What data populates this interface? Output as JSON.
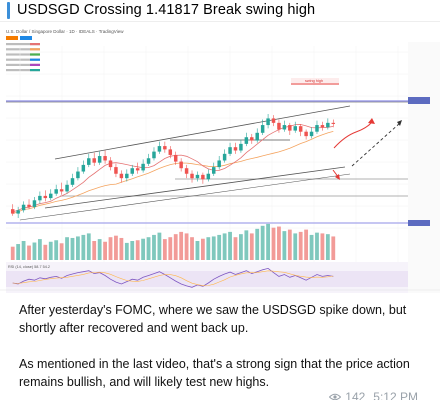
{
  "post": {
    "title": "USDSGD Crossing 1.41817 Break swing high",
    "accent_color": "#3b8fd9",
    "paragraphs": [
      "After yesterday's FOMC, where we saw the USDSGD spike down, but shortly after recovered and went back up.",
      "As mentioned in the last video, that's a strong sign that the price action remains bullish, and will likely test new highs."
    ],
    "views": "142",
    "time": "5:12 PM"
  },
  "chart_image": {
    "instrument_header": "U.S. Dollar / Singapore Dollar · 1D · IDEALS · TradingView",
    "indicator_label": "RSI (14, close) 58.7 54.2",
    "swing_high_label": "swing high",
    "bull_color": "#26a69a",
    "bear_color": "#ef5350",
    "candles": [
      [
        1.348,
        1.344,
        1.3525,
        1.342
      ],
      [
        1.344,
        1.347,
        1.35,
        1.34
      ],
      [
        1.347,
        1.352,
        1.355,
        1.345
      ],
      [
        1.352,
        1.35,
        1.357,
        1.348
      ],
      [
        1.35,
        1.356,
        1.359,
        1.348
      ],
      [
        1.356,
        1.36,
        1.364,
        1.353
      ],
      [
        1.36,
        1.358,
        1.365,
        1.355
      ],
      [
        1.358,
        1.362,
        1.366,
        1.356
      ],
      [
        1.362,
        1.366,
        1.37,
        1.36
      ],
      [
        1.366,
        1.364,
        1.372,
        1.361
      ],
      [
        1.364,
        1.37,
        1.374,
        1.362
      ],
      [
        1.37,
        1.376,
        1.38,
        1.368
      ],
      [
        1.376,
        1.382,
        1.386,
        1.374
      ],
      [
        1.382,
        1.388,
        1.392,
        1.38
      ],
      [
        1.388,
        1.394,
        1.398,
        1.386
      ],
      [
        1.394,
        1.39,
        1.399,
        1.387
      ],
      [
        1.39,
        1.396,
        1.4,
        1.388
      ],
      [
        1.396,
        1.392,
        1.401,
        1.389
      ],
      [
        1.392,
        1.386,
        1.395,
        1.383
      ],
      [
        1.386,
        1.38,
        1.389,
        1.377
      ],
      [
        1.38,
        1.376,
        1.383,
        1.372
      ],
      [
        1.376,
        1.38,
        1.384,
        1.373
      ],
      [
        1.38,
        1.385,
        1.388,
        1.378
      ],
      [
        1.385,
        1.383,
        1.39,
        1.38
      ],
      [
        1.383,
        1.389,
        1.393,
        1.381
      ],
      [
        1.389,
        1.394,
        1.398,
        1.387
      ],
      [
        1.394,
        1.4,
        1.404,
        1.392
      ],
      [
        1.4,
        1.405,
        1.409,
        1.398
      ],
      [
        1.405,
        1.402,
        1.409,
        1.399
      ],
      [
        1.402,
        1.397,
        1.405,
        1.394
      ],
      [
        1.397,
        1.391,
        1.4,
        1.388
      ],
      [
        1.391,
        1.385,
        1.394,
        1.382
      ],
      [
        1.385,
        1.38,
        1.388,
        1.376
      ],
      [
        1.38,
        1.376,
        1.383,
        1.372
      ],
      [
        1.376,
        1.379,
        1.382,
        1.373
      ],
      [
        1.379,
        1.375,
        1.381,
        1.371
      ],
      [
        1.375,
        1.38,
        1.384,
        1.373
      ],
      [
        1.38,
        1.386,
        1.39,
        1.378
      ],
      [
        1.386,
        1.392,
        1.396,
        1.384
      ],
      [
        1.392,
        1.398,
        1.402,
        1.39
      ],
      [
        1.398,
        1.404,
        1.408,
        1.396
      ],
      [
        1.404,
        1.401,
        1.408,
        1.398
      ],
      [
        1.401,
        1.407,
        1.411,
        1.399
      ],
      [
        1.407,
        1.413,
        1.417,
        1.405
      ],
      [
        1.413,
        1.41,
        1.416,
        1.407
      ],
      [
        1.41,
        1.417,
        1.421,
        1.408
      ],
      [
        1.417,
        1.424,
        1.429,
        1.415
      ],
      [
        1.424,
        1.43,
        1.434,
        1.421
      ],
      [
        1.43,
        1.426,
        1.433,
        1.423
      ],
      [
        1.426,
        1.42,
        1.429,
        1.417
      ],
      [
        1.42,
        1.424,
        1.428,
        1.418
      ],
      [
        1.424,
        1.419,
        1.426,
        1.415
      ],
      [
        1.419,
        1.423,
        1.427,
        1.417
      ],
      [
        1.423,
        1.418,
        1.425,
        1.414
      ],
      [
        1.418,
        1.414,
        1.42,
        1.411
      ],
      [
        1.414,
        1.418,
        1.422,
        1.412
      ],
      [
        1.418,
        1.424,
        1.428,
        1.416
      ],
      [
        1.424,
        1.422,
        1.427,
        1.419
      ],
      [
        1.422,
        1.426,
        1.43,
        1.42
      ],
      [
        1.426,
        1.425,
        1.429,
        1.422
      ]
    ],
    "volumes": [
      0.35,
      0.42,
      0.5,
      0.38,
      0.46,
      0.55,
      0.4,
      0.48,
      0.52,
      0.44,
      0.6,
      0.58,
      0.62,
      0.66,
      0.7,
      0.5,
      0.55,
      0.48,
      0.6,
      0.64,
      0.58,
      0.45,
      0.5,
      0.52,
      0.56,
      0.6,
      0.66,
      0.72,
      0.55,
      0.6,
      0.68,
      0.74,
      0.7,
      0.6,
      0.5,
      0.56,
      0.6,
      0.62,
      0.66,
      0.7,
      0.74,
      0.6,
      0.68,
      0.78,
      0.7,
      0.82,
      0.9,
      0.95,
      0.85,
      0.88,
      0.76,
      0.8,
      0.7,
      0.74,
      0.8,
      0.66,
      0.72,
      0.7,
      0.68,
      0.62
    ],
    "rsi": [
      44,
      42,
      48,
      52,
      50,
      55,
      53,
      56,
      58,
      54,
      60,
      63,
      66,
      68,
      70,
      64,
      66,
      60,
      52,
      46,
      42,
      47,
      52,
      50,
      56,
      60,
      64,
      68,
      62,
      55,
      48,
      42,
      38,
      35,
      40,
      37,
      44,
      52,
      58,
      63,
      67,
      62,
      66,
      70,
      64,
      68,
      72,
      75,
      66,
      58,
      62,
      56,
      60,
      55,
      50,
      56,
      62,
      58,
      60,
      58
    ]
  }
}
